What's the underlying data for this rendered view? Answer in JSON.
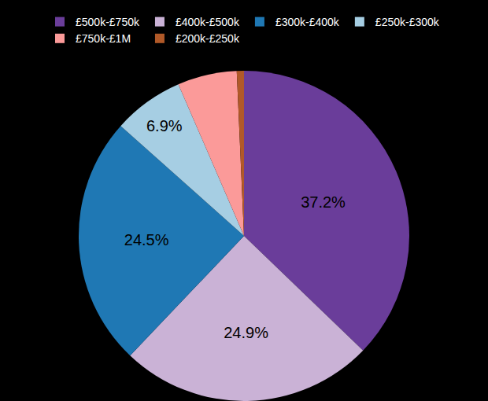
{
  "chart_data": {
    "type": "pie",
    "categories": [
      "£500k-£750k",
      "£400k-£500k",
      "£300k-£400k",
      "£250k-£300k",
      "£750k-£1M",
      "£200k-£250k"
    ],
    "values": [
      37.2,
      24.9,
      24.5,
      6.9,
      5.8,
      0.7
    ],
    "value_labels": [
      "37.2%",
      "24.9%",
      "24.5%",
      "6.9%",
      null,
      null
    ],
    "colors": [
      "#6a3d9a",
      "#cab2d6",
      "#1f78b4",
      "#a6cee3",
      "#fb9a99",
      "#b15928"
    ],
    "data_labels": true,
    "legend": "top"
  }
}
